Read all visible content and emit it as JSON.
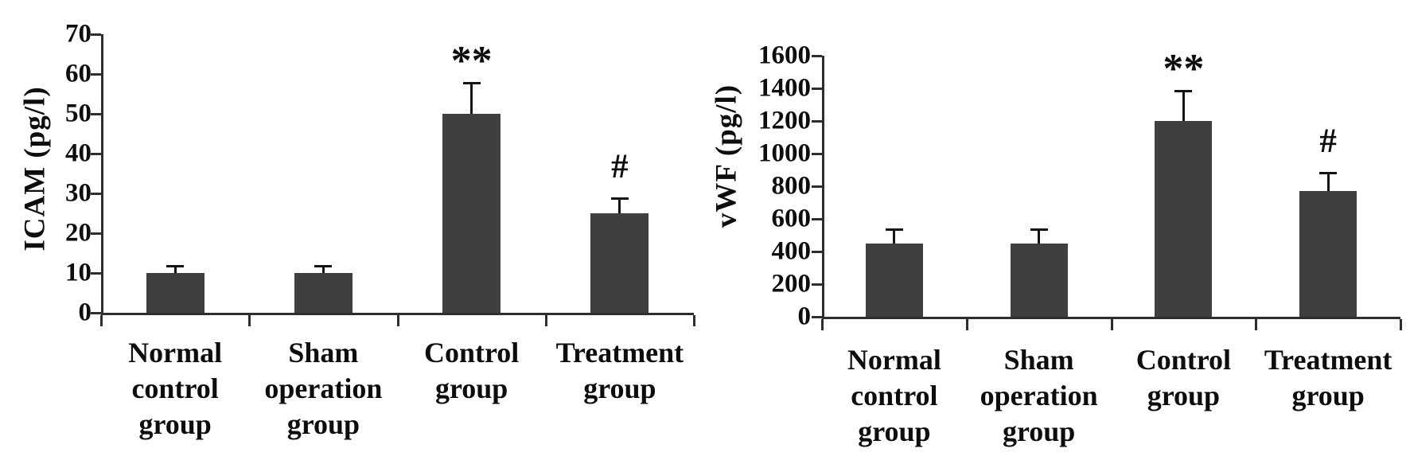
{
  "figure": {
    "background_color": "#ffffff",
    "bar_color": "#3f3f3f",
    "axis_color": "#2e2e2e",
    "text_color": "#0d0d0d"
  },
  "chart_data": [
    {
      "type": "bar",
      "title": "",
      "ylabel": "ICAM (pg/l)",
      "xlabel": "",
      "categories": [
        "Normal control group",
        "Sham operation group",
        "Control group",
        "Treatment group"
      ],
      "values": [
        10,
        10,
        50,
        25
      ],
      "errors": [
        2,
        2,
        8,
        4
      ],
      "annotations": [
        "",
        "",
        "**",
        "#"
      ],
      "ylim": [
        0,
        70
      ],
      "yticks": [
        0,
        10,
        20,
        30,
        40,
        50,
        60,
        70
      ],
      "bar_color": "#3f3f3f",
      "grid": false,
      "legend": "none",
      "error_bars": "upper only"
    },
    {
      "type": "bar",
      "title": "",
      "ylabel": "vWF (pg/l)",
      "xlabel": "",
      "categories": [
        "Normal control group",
        "Sham operation group",
        "Control group",
        "Treatment group"
      ],
      "values": [
        450,
        450,
        1200,
        770
      ],
      "errors": [
        90,
        90,
        190,
        120
      ],
      "annotations": [
        "",
        "",
        "**",
        "#"
      ],
      "ylim": [
        0,
        1600
      ],
      "yticks": [
        0,
        200,
        400,
        600,
        800,
        1000,
        1200,
        1400,
        1600
      ],
      "bar_color": "#3f3f3f",
      "grid": false,
      "legend": "none",
      "error_bars": "upper only"
    }
  ]
}
